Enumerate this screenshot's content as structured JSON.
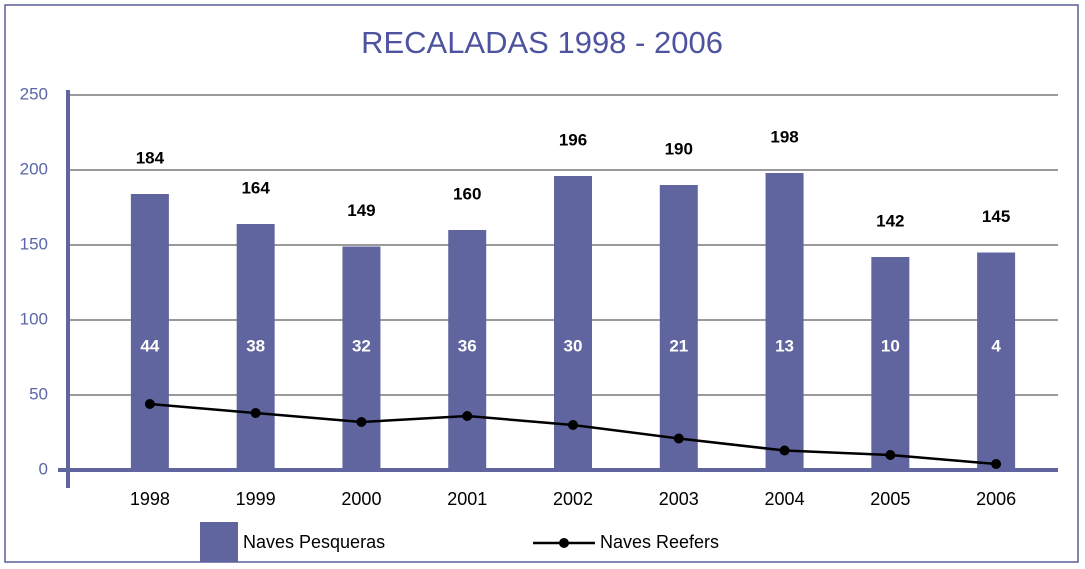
{
  "chart_data": {
    "type": "bar",
    "title": "RECALADAS 1998 - 2006",
    "categories": [
      "1998",
      "1999",
      "2000",
      "2001",
      "2002",
      "2003",
      "2004",
      "2005",
      "2006"
    ],
    "series": [
      {
        "name": "Naves Pesqueras",
        "type": "bar",
        "color": "#6065a0",
        "values": [
          184,
          164,
          149,
          160,
          196,
          190,
          198,
          142,
          145
        ]
      },
      {
        "name": "Naves Reefers",
        "type": "line",
        "color": "#000000",
        "values": [
          44,
          38,
          32,
          36,
          30,
          21,
          13,
          10,
          4
        ]
      }
    ],
    "ylim": [
      0,
      250
    ],
    "yticks": [
      0,
      50,
      100,
      150,
      200,
      250
    ],
    "grid": true
  }
}
